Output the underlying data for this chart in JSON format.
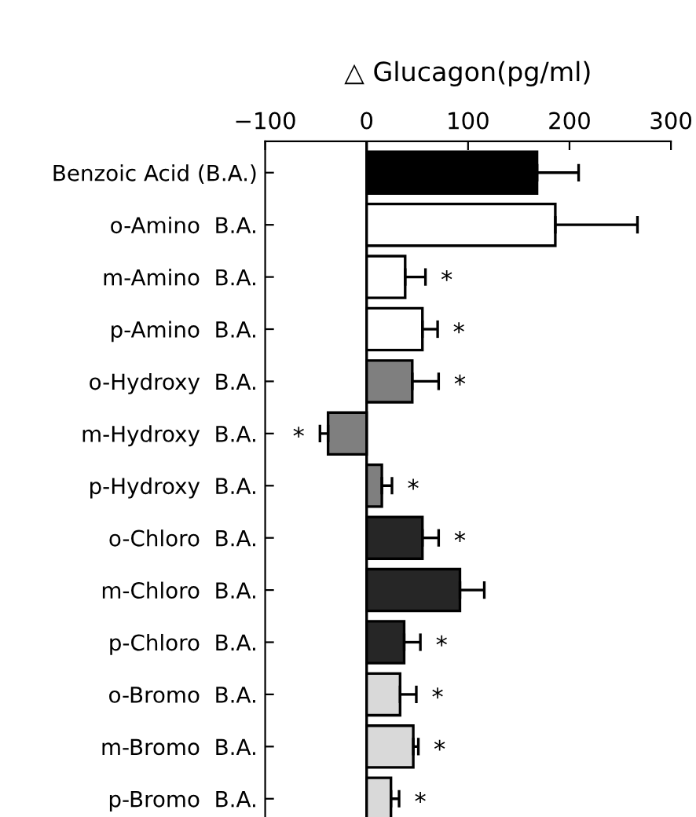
{
  "chart_data": {
    "type": "bar",
    "orientation": "horizontal",
    "xlabel": "△ Glucagon(pg/ml)",
    "categories": [
      "Benzoic Acid (B.A.)",
      "o-Amino  B.A.",
      "m-Amino  B.A.",
      "p-Amino  B.A.",
      "o-Hydroxy  B.A.",
      "m-Hydroxy  B.A.",
      "p-Hydroxy  B.A.",
      "o-Chloro  B.A.",
      "m-Chloro  B.A.",
      "p-Chloro  B.A.",
      "o-Bromo  B.A.",
      "m-Bromo  B.A.",
      "p-Bromo  B.A."
    ],
    "values": [
      168,
      186,
      38,
      55,
      45,
      -38,
      15,
      55,
      92,
      37,
      33,
      46,
      24
    ],
    "errors": [
      41,
      81,
      20,
      15,
      26,
      8,
      10,
      16,
      24,
      16,
      16,
      5,
      8
    ],
    "colors": [
      "#000000",
      "#ffffff",
      "#ffffff",
      "#ffffff",
      "#7f7f7f",
      "#7f7f7f",
      "#7f7f7f",
      "#262626",
      "#262626",
      "#262626",
      "#d9d9d9",
      "#d9d9d9",
      "#d9d9d9"
    ],
    "xlim": [
      -100,
      300
    ],
    "xticks": [
      {
        "value": -100,
        "label": "−100"
      },
      0,
      100,
      200,
      300
    ],
    "ref_lines": [
      {
        "axis": "x",
        "value": 0,
        "color": "#000000"
      }
    ],
    "annotations": [
      {
        "text": "*",
        "x": 58,
        "y": "m-Amino  B.A."
      },
      {
        "text": "*",
        "x": 70,
        "y": "p-Amino  B.A."
      },
      {
        "text": "*",
        "x": 71,
        "y": "o-Hydroxy  B.A."
      },
      {
        "text": "*",
        "x": -46,
        "y": "m-Hydroxy  B.A."
      },
      {
        "text": "*",
        "x": 25,
        "y": "p-Hydroxy  B.A."
      },
      {
        "text": "*",
        "x": 71,
        "y": "o-Chloro  B.A."
      },
      {
        "text": "*",
        "x": 53,
        "y": "p-Chloro  B.A."
      },
      {
        "text": "*",
        "x": 49,
        "y": "o-Bromo  B.A."
      },
      {
        "text": "*",
        "x": 51,
        "y": "m-Bromo  B.A."
      },
      {
        "text": "*",
        "x": 32,
        "y": "p-Bromo  B.A."
      }
    ],
    "grid": false,
    "legend": false
  }
}
